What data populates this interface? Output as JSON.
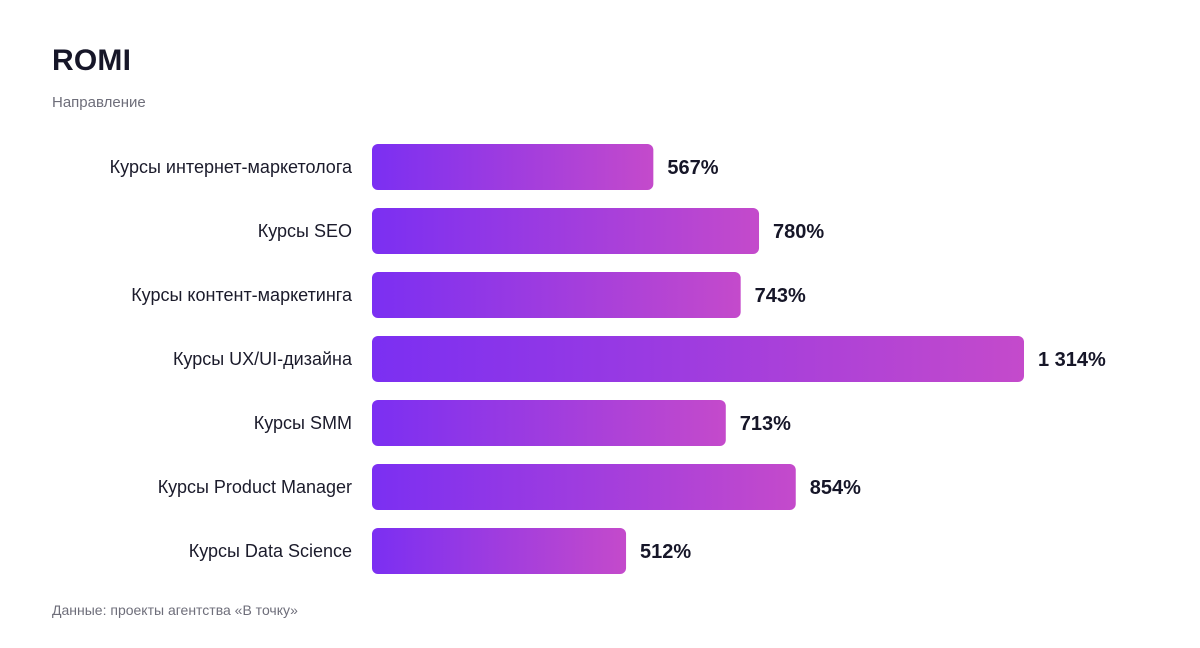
{
  "header": {
    "title": "ROMI",
    "subtitle": "Направление"
  },
  "footer": {
    "source": "Данные: проекты агентства «В точку»"
  },
  "colors": {
    "bar_start": "#7b2ff2",
    "bar_end": "#c44acb"
  },
  "chart_data": {
    "type": "bar",
    "orientation": "horizontal",
    "title": "ROMI",
    "subtitle": "Направление",
    "categories": [
      "Курсы интернет-маркетолога",
      "Курсы SEO",
      "Курсы контент-маркетинга",
      "Курсы UX/UI-дизайна",
      "Курсы SMM",
      "Курсы Product Manager",
      "Курсы Data Science"
    ],
    "values": [
      567,
      780,
      743,
      1314,
      713,
      854,
      512
    ],
    "value_labels": [
      "567%",
      "780%",
      "743%",
      "1 314%",
      "713%",
      "854%",
      "512%"
    ],
    "unit": "%",
    "xlim": [
      0,
      1314
    ],
    "grid": false,
    "legend": "none"
  }
}
